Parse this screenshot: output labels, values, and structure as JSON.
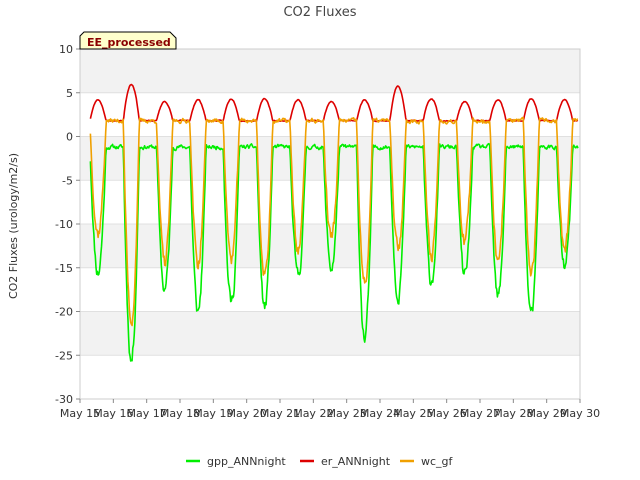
{
  "chart_data": {
    "type": "line",
    "title": "CO2 Fluxes",
    "xlabel": "",
    "ylabel": "CO2 Fluxes (urology/m2/s)",
    "badge": "EE_processed",
    "ylim": [
      -30,
      10
    ],
    "yticks": [
      10,
      5,
      0,
      -5,
      -10,
      -15,
      -20,
      -25,
      -30
    ],
    "xlim": [
      15,
      30
    ],
    "xticks": [
      15,
      16,
      17,
      18,
      19,
      20,
      21,
      22,
      23,
      24,
      25,
      26,
      27,
      28,
      29,
      30
    ],
    "xtick_labels": [
      "May 15",
      "May 16",
      "May 17",
      "May 18",
      "May 19",
      "May 20",
      "May 21",
      "May 22",
      "May 23",
      "May 24",
      "May 25",
      "May 26",
      "May 27",
      "May 28",
      "May 29",
      "May 30"
    ],
    "grid": "horizontal alternating bands",
    "legend_position": "bottom-center",
    "x_start": 15.3,
    "x_end": 29.95,
    "series": [
      {
        "name": "gpp_ANNnight",
        "color": "#00ee00",
        "night_value": -1.2,
        "daily_minimum": [
          -15.5,
          -25.5,
          -17.5,
          -20.0,
          -19.0,
          -19.5,
          -16.0,
          -15.0,
          -23.0,
          -18.0,
          -16.5,
          -16.0,
          -18.5,
          -20.5,
          -15.0
        ],
        "day_noise": 2.5,
        "noise_seed": 11
      },
      {
        "name": "er_ANNnight",
        "color": "#dd0000",
        "night_value": 1.8,
        "daily_maximum": [
          4.2,
          6.0,
          4.0,
          4.2,
          4.3,
          4.3,
          4.2,
          4.0,
          4.2,
          5.8,
          4.3,
          4.0,
          4.2,
          4.3,
          4.2
        ],
        "day_noise": 0.3,
        "noise_seed": 23
      },
      {
        "name": "wc_gf",
        "color": "#f0a000",
        "night_value": 1.8,
        "daily_minimum": [
          -11.0,
          -21.0,
          -14.5,
          -14.5,
          -14.0,
          -16.0,
          -13.0,
          -11.5,
          -17.0,
          -13.0,
          -13.5,
          -12.0,
          -14.0,
          -15.5,
          -13.0
        ],
        "day_noise": 2.5,
        "noise_seed": 37
      }
    ]
  }
}
